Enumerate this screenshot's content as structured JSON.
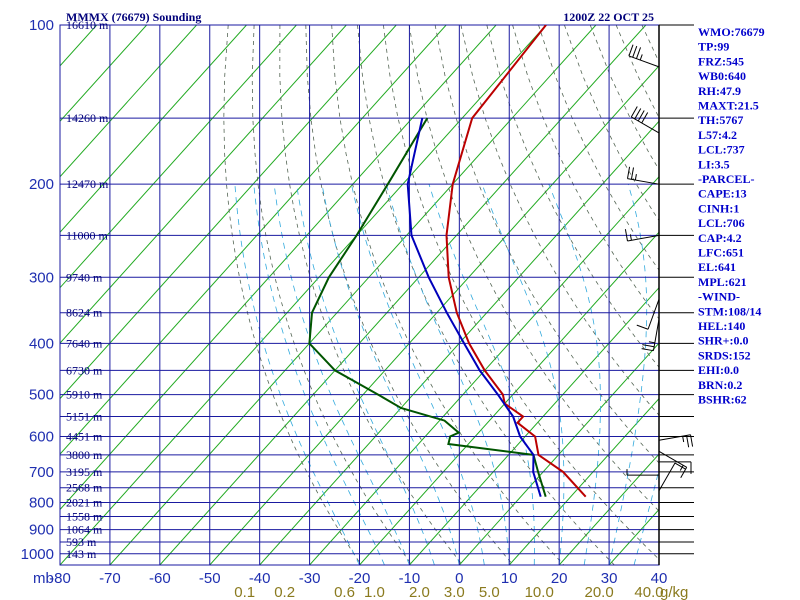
{
  "header": {
    "station_title": "MMMX (76679) Sounding",
    "valid_time": "1200Z 22 OCT 25"
  },
  "stats": [
    "WMO:76679",
    "TP:99",
    "FRZ:545",
    "WB0:640",
    "RH:47.9",
    "MAXT:21.5",
    "TH:5767",
    "L57:4.2",
    "LCL:737",
    "LI:3.5",
    "-PARCEL-",
    "CAPE:13",
    "CINH:1",
    "LCL:706",
    "CAP:4.2",
    "LFC:651",
    "EL:641",
    "MPL:621",
    "-WIND-",
    "STM:108/14",
    "HEL:140",
    "SHR+:0.0",
    "SRDS:152",
    "EHI:0.0",
    "BRN:0.2",
    "BSHR:62"
  ],
  "colors": {
    "grid": "#1a1aa0",
    "isotherm": "#22aa22",
    "dry_adiabat": "#556655",
    "moist_adiabat": "#33aadd",
    "temperature": "#bb0000",
    "dewpoint": "#005500",
    "parcel": "#0000bb",
    "wind": "#000000"
  },
  "chart_data": {
    "type": "skew-t",
    "x_unit_label": "mb",
    "temperature_ticks": [
      "-80",
      "-70",
      "-60",
      "-50",
      "-40",
      "-30",
      "-20",
      "-10",
      "0",
      "10",
      "20",
      "30",
      "40"
    ],
    "mixing_ratio_ticks": [
      "0.1",
      "0.2",
      "0.6",
      "1.0",
      "2.0",
      "3.0",
      "5.0",
      "10.0",
      "20.0",
      "40.0"
    ],
    "mixing_ratio_unit": "g/kg",
    "xlim": [
      -80,
      40
    ],
    "pressure_levels": [
      {
        "p": 100,
        "label": "100",
        "height": "16610 m"
      },
      {
        "p": 150,
        "label": "",
        "height": "14260 m"
      },
      {
        "p": 200,
        "label": "200",
        "height": "12470 m"
      },
      {
        "p": 250,
        "label": "",
        "height": "11000 m"
      },
      {
        "p": 300,
        "label": "300",
        "height": "9740 m"
      },
      {
        "p": 350,
        "label": "",
        "height": "8624 m"
      },
      {
        "p": 400,
        "label": "400",
        "height": "7640 m"
      },
      {
        "p": 450,
        "label": "",
        "height": "6730 m"
      },
      {
        "p": 500,
        "label": "500",
        "height": "5910 m"
      },
      {
        "p": 550,
        "label": "",
        "height": "5151 m"
      },
      {
        "p": 600,
        "label": "600",
        "height": "4451 m"
      },
      {
        "p": 650,
        "label": "",
        "height": "3800 m"
      },
      {
        "p": 700,
        "label": "700",
        "height": "3195 m"
      },
      {
        "p": 750,
        "label": "",
        "height": "2568 m"
      },
      {
        "p": 800,
        "label": "800",
        "height": "2021 m"
      },
      {
        "p": 850,
        "label": "",
        "height": "1558 m"
      },
      {
        "p": 900,
        "label": "900",
        "height": "1064 m"
      },
      {
        "p": 950,
        "label": "",
        "height": "593 m"
      },
      {
        "p": 1000,
        "label": "1000",
        "height": "143 m"
      }
    ],
    "series": [
      {
        "points": [
          [
            100,
            -80
          ],
          [
            150,
            -78
          ],
          [
            200,
            -70
          ],
          [
            250,
            -62
          ],
          [
            300,
            -54
          ],
          [
            350,
            -46
          ],
          [
            400,
            -38
          ],
          [
            450,
            -30
          ],
          [
            500,
            -22
          ],
          [
            520,
            -20
          ],
          [
            550,
            -14
          ],
          [
            565,
            -14
          ],
          [
            600,
            -8
          ],
          [
            650,
            -4
          ],
          [
            700,
            4
          ],
          [
            780,
            13
          ]
        ]
      },
      {
        "points": [
          [
            150,
            -87
          ],
          [
            200,
            -83
          ],
          [
            250,
            -80
          ],
          [
            300,
            -78
          ],
          [
            350,
            -75
          ],
          [
            400,
            -70
          ],
          [
            450,
            -60
          ],
          [
            500,
            -47
          ],
          [
            530,
            -40
          ],
          [
            560,
            -29
          ],
          [
            590,
            -24
          ],
          [
            600,
            -25
          ],
          [
            620,
            -24
          ],
          [
            650,
            -5
          ],
          [
            700,
            -1
          ],
          [
            780,
            5
          ]
        ]
      },
      {
        "points": [
          [
            150,
            -88
          ],
          [
            200,
            -79
          ],
          [
            250,
            -69
          ],
          [
            300,
            -58
          ],
          [
            350,
            -48
          ],
          [
            400,
            -39
          ],
          [
            450,
            -31
          ],
          [
            500,
            -23
          ],
          [
            550,
            -16
          ],
          [
            600,
            -11
          ],
          [
            650,
            -5
          ],
          [
            700,
            -2
          ],
          [
            780,
            4
          ]
        ]
      }
    ],
    "wind_barbs": [
      {
        "p": 120,
        "dir": 290,
        "spd": 35
      },
      {
        "p": 160,
        "dir": 300,
        "spd": 40
      },
      {
        "p": 200,
        "dir": 280,
        "spd": 25
      },
      {
        "p": 250,
        "dir": 260,
        "spd": 15
      },
      {
        "p": 330,
        "dir": 200,
        "spd": 10
      },
      {
        "p": 360,
        "dir": 190,
        "spd": 25
      },
      {
        "p": 610,
        "dir": 80,
        "spd": 25
      },
      {
        "p": 640,
        "dir": 120,
        "spd": 15
      },
      {
        "p": 670,
        "dir": 90,
        "spd": 10
      },
      {
        "p": 710,
        "dir": 270,
        "spd": 5
      },
      {
        "p": 760,
        "dir": 30,
        "spd": 10
      }
    ]
  }
}
